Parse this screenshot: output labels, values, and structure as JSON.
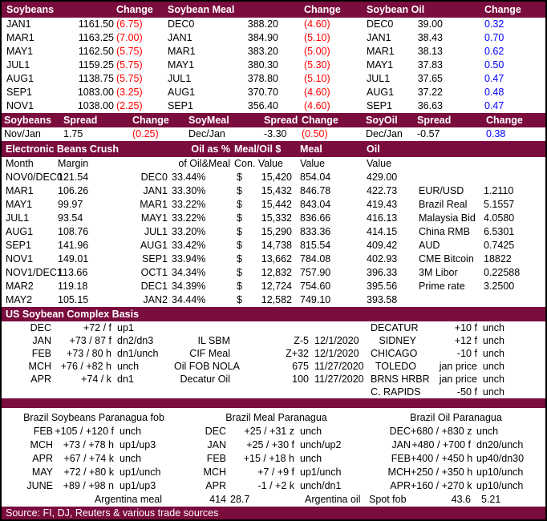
{
  "colors": {
    "maroon": "#7a0c3e",
    "red": "#ff0000",
    "blue": "#0000ff"
  },
  "futures": {
    "headers": {
      "g1": "Soybeans",
      "g1_change": "Change",
      "g2": "Soybean Meal",
      "g2_change": "Change",
      "g3": "Soybean Oil",
      "g3_change": "Change"
    },
    "rows": [
      {
        "s1": "JAN1",
        "p1": "1161.50",
        "c1": "(6.75)",
        "k1": "neg",
        "s2": "DEC0",
        "p2": "388.20",
        "c2": "(4.60)",
        "k2": "neg",
        "s3": "DEC0",
        "p3": "39.00",
        "c3": "0.32",
        "k3": "pos"
      },
      {
        "s1": "MAR1",
        "p1": "1163.25",
        "c1": "(7.00)",
        "k1": "neg",
        "s2": "JAN1",
        "p2": "384.90",
        "c2": "(5.10)",
        "k2": "neg",
        "s3": "JAN1",
        "p3": "38.43",
        "c3": "0.70",
        "k3": "pos"
      },
      {
        "s1": "MAY1",
        "p1": "1162.50",
        "c1": "(5.75)",
        "k1": "neg",
        "s2": "MAR1",
        "p2": "383.20",
        "c2": "(5.00)",
        "k2": "neg",
        "s3": "MAR1",
        "p3": "38.13",
        "c3": "0.62",
        "k3": "pos"
      },
      {
        "s1": "JUL1",
        "p1": "1159.25",
        "c1": "(5.75)",
        "k1": "neg",
        "s2": "MAY1",
        "p2": "380.30",
        "c2": "(5.30)",
        "k2": "neg",
        "s3": "MAY1",
        "p3": "37.83",
        "c3": "0.50",
        "k3": "pos"
      },
      {
        "s1": "AUG1",
        "p1": "1138.75",
        "c1": "(5.75)",
        "k1": "neg",
        "s2": "JUL1",
        "p2": "378.80",
        "c2": "(5.10)",
        "k2": "neg",
        "s3": "JUL1",
        "p3": "37.65",
        "c3": "0.47",
        "k3": "pos"
      },
      {
        "s1": "SEP1",
        "p1": "1083.00",
        "c1": "(3.25)",
        "k1": "neg",
        "s2": "AUG1",
        "p2": "370.70",
        "c2": "(4.60)",
        "k2": "neg",
        "s3": "AUG1",
        "p3": "37.22",
        "c3": "0.48",
        "k3": "pos"
      },
      {
        "s1": "NOV1",
        "p1": "1038.00",
        "c1": "(2.25)",
        "k1": "neg",
        "s2": "SEP1",
        "p2": "356.40",
        "c2": "(4.60)",
        "k2": "neg",
        "s3": "SEP1",
        "p3": "36.63",
        "c3": "0.47",
        "k3": "pos"
      }
    ]
  },
  "spreads": {
    "headers": {
      "h1": "Soybeans",
      "h2": "Spread",
      "h3": "Change",
      "h4": "SoyMeal",
      "h5": "Spread",
      "h6": "Change",
      "h7": "SoyOil",
      "h8": "Spread",
      "h9": "Change"
    },
    "rows": [
      {
        "l1": "Nov/Jan",
        "v1": "1.75",
        "c1": "(0.25)",
        "k1": "neg",
        "l2": "Dec/Jan",
        "v2": "-3.30",
        "c2": "(0.50)",
        "k2": "neg",
        "l3": "Dec/Jan",
        "v3": "-0.57",
        "c3": "0.38",
        "k3": "pos"
      }
    ]
  },
  "crush": {
    "title": "Electronic Beans Crush",
    "headers": {
      "oil_pct": "Oil as %",
      "meal_oil": "Meal/Oil $",
      "meal": "Meal",
      "oil": "Oil"
    },
    "subheaders": {
      "month": "Month",
      "margin": "Margin",
      "oil_pct": "of Oil&Meal",
      "con": "Con. Value",
      "meal": "Value",
      "oil": "Value"
    },
    "rows": [
      {
        "month": "NOV0/DEC0",
        "margin": "121.54",
        "cm": "DEC0",
        "pct": "33.44%",
        "d": "$",
        "con": "15,420",
        "meal": "854.04",
        "oil": "429.00",
        "fx": "",
        "fxv": ""
      },
      {
        "month": "MAR1",
        "margin": "106.26",
        "cm": "JAN1",
        "pct": "33.30%",
        "d": "$",
        "con": "15,432",
        "meal": "846.78",
        "oil": "422.73",
        "fx": "EUR/USD",
        "fxv": "1.2110"
      },
      {
        "month": "MAY1",
        "margin": "99.97",
        "cm": "MAR1",
        "pct": "33.22%",
        "d": "$",
        "con": "15,442",
        "meal": "843.04",
        "oil": "419.43",
        "fx": "Brazil Real",
        "fxv": "5.1557"
      },
      {
        "month": "JUL1",
        "margin": "93.54",
        "cm": "MAY1",
        "pct": "33.22%",
        "d": "$",
        "con": "15,332",
        "meal": "836.66",
        "oil": "416.13",
        "fx": "Malaysia Bid",
        "fxv": "4.0580"
      },
      {
        "month": "AUG1",
        "margin": "108.76",
        "cm": "JUL1",
        "pct": "33.20%",
        "d": "$",
        "con": "15,290",
        "meal": "833.36",
        "oil": "414.15",
        "fx": "China RMB",
        "fxv": "6.5301"
      },
      {
        "month": "SEP1",
        "margin": "141.96",
        "cm": "AUG1",
        "pct": "33.42%",
        "d": "$",
        "con": "14,738",
        "meal": "815.54",
        "oil": "409.42",
        "fx": "AUD",
        "fxv": "0.7425"
      },
      {
        "month": "NOV1",
        "margin": "149.01",
        "cm": "SEP1",
        "pct": "33.94%",
        "d": "$",
        "con": "13,662",
        "meal": "784.08",
        "oil": "402.93",
        "fx": "CME Bitcoin",
        "fxv": "18822"
      },
      {
        "month": "NOV1/DEC1",
        "margin": "113.66",
        "cm": "OCT1",
        "pct": "34.34%",
        "d": "$",
        "con": "12,832",
        "meal": "757.90",
        "oil": "396.33",
        "fx": "3M Libor",
        "fxv": "0.22588"
      },
      {
        "month": "MAR2",
        "margin": "119.18",
        "cm": "DEC1",
        "pct": "34.39%",
        "d": "$",
        "con": "12,724",
        "meal": "754.60",
        "oil": "395.56",
        "fx": "Prime rate",
        "fxv": "3.2500"
      },
      {
        "month": "MAY2",
        "margin": "105.15",
        "cm": "JAN2",
        "pct": "34.44%",
        "d": "$",
        "con": "12,582",
        "meal": "749.10",
        "oil": "393.58",
        "fx": "",
        "fxv": ""
      }
    ]
  },
  "basis": {
    "title": "US Soybean Complex Basis",
    "rows": [
      {
        "m": "DEC",
        "b": "+72 / f",
        "dir": "up1",
        "lbl": "",
        "val": "",
        "date": "",
        "loc": "DECATUR",
        "lv": "+10 f  unch"
      },
      {
        "m": "JAN",
        "b": "+73 / 87 f",
        "dir": "dn2/dn3",
        "lbl": "IL SBM",
        "val": "Z-5",
        "date": "12/1/2020",
        "loc": "SIDNEY",
        "lv": "+12 f  unch"
      },
      {
        "m": "FEB",
        "b": "+73 / 80 h",
        "dir": "dn1/unch",
        "lbl": "CIF Meal",
        "val": "Z+32",
        "date": "12/1/2020",
        "loc": "CHICAGO",
        "lv": "-10 f  unch"
      },
      {
        "m": "MCH",
        "b": "+76 / +82 h",
        "dir": "unch",
        "lbl": "Oil FOB NOLA",
        "val": "675",
        "date": "11/27/2020",
        "loc": "TOLEDO",
        "lv": "jan price  unch"
      },
      {
        "m": "APR",
        "b": "+74 / k",
        "dir": "dn1",
        "lbl": "Decatur Oil",
        "val": "100",
        "date": "11/27/2020",
        "loc": "BRNS HRBR",
        "lv": "jan price  unch"
      },
      {
        "m": "",
        "b": "",
        "dir": "",
        "lbl": "",
        "val": "",
        "date": "",
        "loc": "C. RAPIDS",
        "lv": "-50 f  unch"
      }
    ]
  },
  "brazil": {
    "titles": {
      "t1": "Brazil Soybeans Paranagua fob",
      "t2": "Brazil Meal Paranagua",
      "t3": "Brazil Oil Paranagua"
    },
    "rows": [
      {
        "m1": "FEB",
        "v1": "+105 / +120 f",
        "d1": "unch",
        "m2": "DEC",
        "v2": "+25 / +31 z",
        "d2": "unch",
        "m3": "DEC",
        "v3": "+680 / +830 z",
        "d3": "unch"
      },
      {
        "m1": "MCH",
        "v1": "+73 / +78 h",
        "d1": "up1/up3",
        "m2": "JAN",
        "v2": "+25 / +30 f",
        "d2": "unch/up2",
        "m3": "JAN",
        "v3": "+480 / +700 f",
        "d3": "dn20/unch"
      },
      {
        "m1": "APR",
        "v1": "+67 / +74 k",
        "d1": "unch",
        "m2": "FEB",
        "v2": "+15 / +18 h",
        "d2": "unch",
        "m3": "FEB",
        "v3": "+400 / +450 h",
        "d3": "up40/dn30"
      },
      {
        "m1": "MAY",
        "v1": "+72 / +80 k",
        "d1": "up1/unch",
        "m2": "MCH",
        "v2": "+7 / +9 f",
        "d2": "up1/unch",
        "m3": "MCH",
        "v3": "+250 / +350 h",
        "d3": "up10/unch"
      },
      {
        "m1": "JUNE",
        "v1": "+89 / +98 n",
        "d1": "up1/up3",
        "m2": "APR",
        "v2": "-1 / +2 k",
        "d2": "unch/dn1",
        "m3": "APR",
        "v3": "+160 / +270 k",
        "d3": "up10/unch"
      }
    ],
    "bottom": {
      "arg_meal_label": "Argentina meal",
      "arg_meal_val": "414",
      "arg_meal_val2": "28.7",
      "arg_oil_label": "Argentina oil",
      "spot_label": "Spot fob",
      "spot_val": "43.6",
      "spot_val2": "5.21"
    }
  },
  "footer": {
    "source": "Source: FI, DJ, Reuters & various trade sources"
  }
}
